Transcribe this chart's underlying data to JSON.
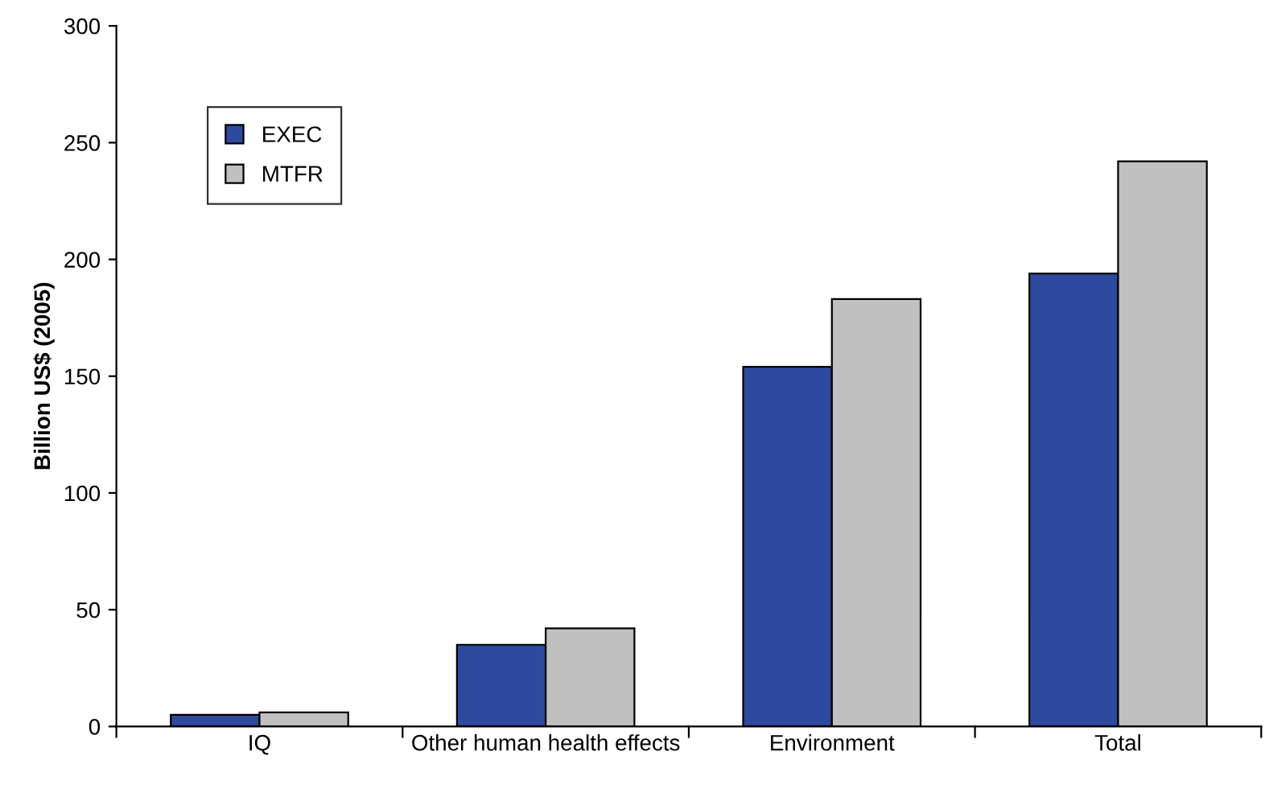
{
  "chart_data": {
    "type": "bar",
    "ylabel": "Billion US$ (2005)",
    "categories": [
      "IQ",
      "Other human health effects",
      "Environment",
      "Total"
    ],
    "series": [
      {
        "name": "EXEC",
        "color": "#2e4a9e",
        "values": [
          5,
          35,
          154,
          194
        ]
      },
      {
        "name": "MTFR",
        "color": "#c0c0c0",
        "values": [
          6,
          42,
          183,
          242
        ]
      }
    ],
    "ylim": [
      0,
      300
    ],
    "yticks": [
      0,
      50,
      100,
      150,
      200,
      250,
      300
    ],
    "grid": false,
    "legend": "top left"
  }
}
